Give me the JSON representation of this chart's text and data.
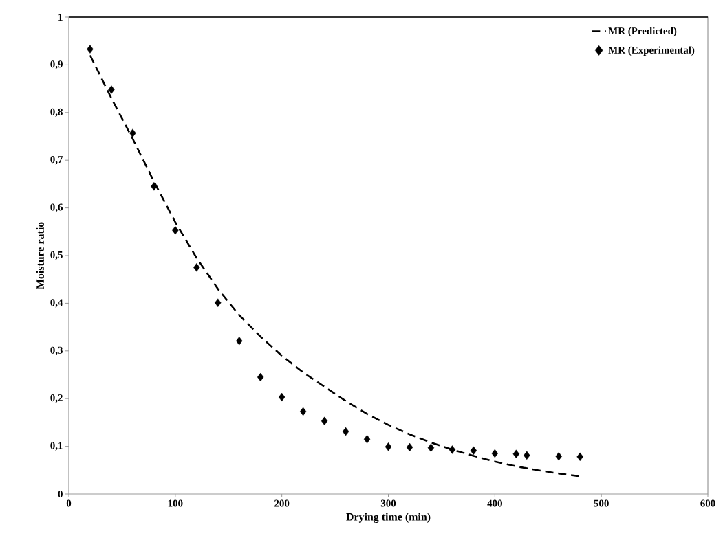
{
  "chart_data": {
    "type": "scatter",
    "xlabel": "Drying time (min)",
    "ylabel": "Moisture ratio",
    "xlim": [
      0,
      600
    ],
    "xticks": [
      0,
      100,
      200,
      300,
      400,
      500,
      600
    ],
    "ylim": [
      0,
      1
    ],
    "yticks": [
      0,
      {
        "value": 0.1,
        "label": "0,1"
      },
      {
        "value": 0.2,
        "label": "0,2"
      },
      {
        "value": 0.3,
        "label": "0,3"
      },
      {
        "value": 0.4,
        "label": "0,4"
      },
      {
        "value": 0.5,
        "label": "0,5"
      },
      {
        "value": 0.6,
        "label": "0,6"
      },
      {
        "value": 0.7,
        "label": "0,7"
      },
      {
        "value": 0.8,
        "label": "0,8"
      },
      {
        "value": 0.9,
        "label": "0,9"
      },
      1
    ],
    "legend": "top right",
    "grid": false,
    "series": [
      {
        "name": "MR (Predicted)",
        "type": "line",
        "line_style": "dashed",
        "marker": "none",
        "color": "#000000",
        "x": [
          20,
          40,
          60,
          80,
          100,
          120,
          140,
          160,
          180,
          200,
          220,
          240,
          260,
          280,
          300,
          320,
          340,
          360,
          380,
          400,
          420,
          440,
          460,
          480
        ],
        "values": [
          0.92,
          0.83,
          0.745,
          0.655,
          0.57,
          0.495,
          0.43,
          0.375,
          0.33,
          0.29,
          0.255,
          0.225,
          0.195,
          0.168,
          0.145,
          0.125,
          0.108,
          0.093,
          0.08,
          0.068,
          0.058,
          0.05,
          0.043,
          0.037
        ]
      },
      {
        "name": "MR (Experimental)",
        "marker": "diamond",
        "color": "#000000",
        "x": [
          20,
          40,
          60,
          80,
          100,
          120,
          140,
          160,
          180,
          200,
          220,
          240,
          260,
          280,
          300,
          320,
          340,
          360,
          380,
          400,
          420,
          430,
          460,
          480
        ],
        "values": [
          0.933,
          0.848,
          0.757,
          0.645,
          0.553,
          0.475,
          0.401,
          0.321,
          0.245,
          0.203,
          0.173,
          0.153,
          0.131,
          0.115,
          0.099,
          0.098,
          0.097,
          0.093,
          0.091,
          0.085,
          0.084,
          0.081,
          0.079,
          0.078
        ]
      }
    ]
  }
}
